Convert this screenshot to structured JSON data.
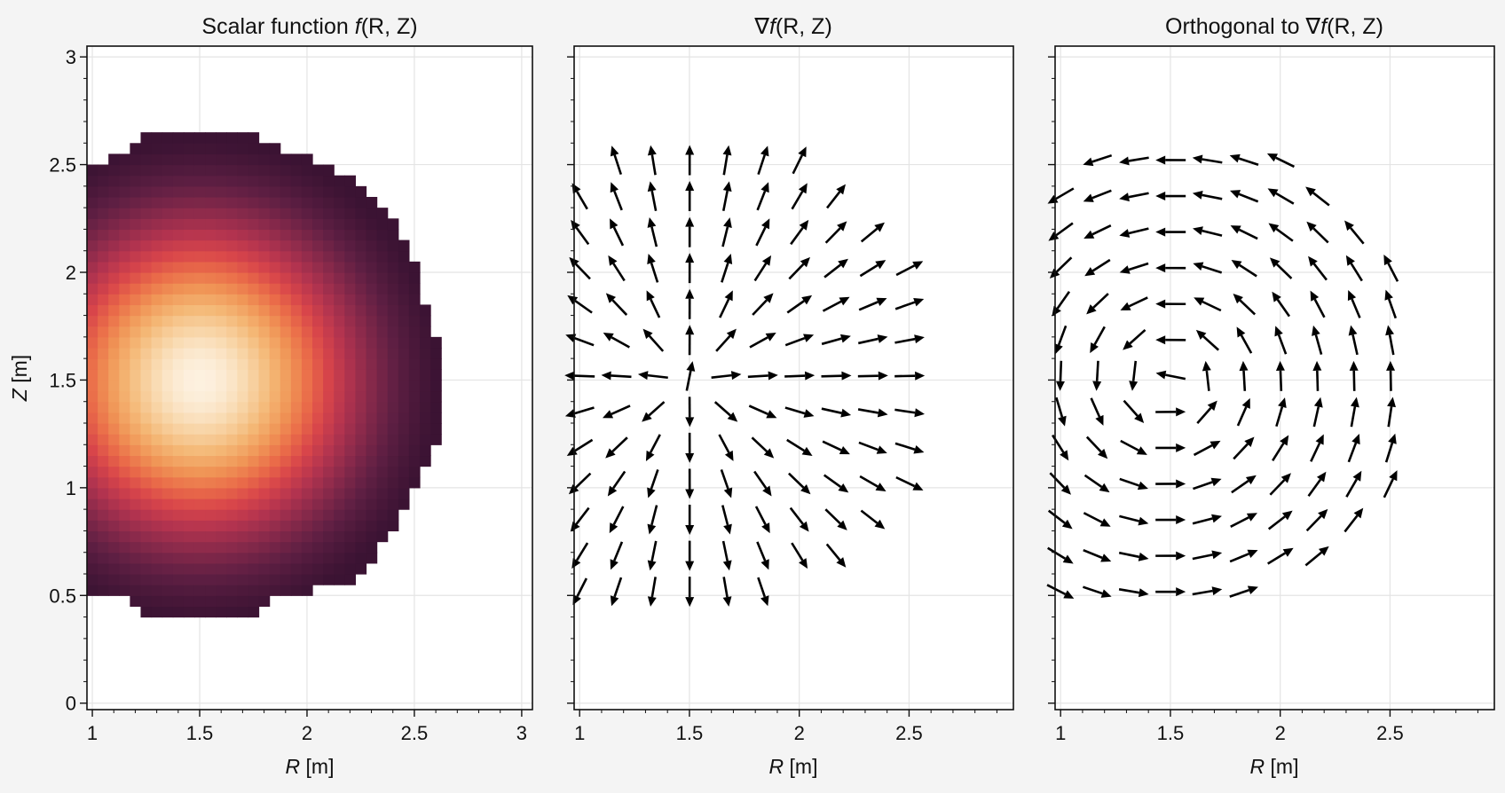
{
  "chart_data": [
    {
      "type": "heatmap",
      "title": "Scalar function f(R, Z)",
      "title_parts": {
        "prefix": "Scalar function ",
        "f": "f",
        "args": "(R, Z)"
      },
      "xlabel": {
        "var": "R",
        "unit": " [m]"
      },
      "ylabel": {
        "var": "Z",
        "unit": " [m]"
      },
      "xlim": [
        0.975,
        3.05
      ],
      "ylim": [
        -0.03,
        3.05
      ],
      "xticks": [
        1,
        1.5,
        2,
        2.5,
        3
      ],
      "xtick_labels": [
        "1",
        "1.5",
        "2",
        "2.5",
        "3"
      ],
      "yticks": [
        0,
        0.5,
        1,
        1.5,
        2,
        2.5,
        3
      ],
      "ytick_labels": [
        "0",
        "0.5",
        "1",
        "1.5",
        "2",
        "2.5",
        "3"
      ],
      "grid": true,
      "colormap": "rocket",
      "colormap_stops": [
        "#3b1333",
        "#5e1f43",
        "#8a2a4b",
        "#b4344f",
        "#d8454a",
        "#ea6c49",
        "#f09556",
        "#f4b775",
        "#f8d5a7",
        "#fdf1e0"
      ],
      "function": {
        "form": "exp(-((R-R0)^2+(Z-Z0)^2)/s2)",
        "R0": 1.5,
        "Z0": 1.5,
        "s2": 0.5
      },
      "grid_spacing": 0.05,
      "masked_outside_boundary": true
    },
    {
      "type": "quiver",
      "title": "∇f(R, Z)",
      "title_parts": {
        "prefix": "∇",
        "f": "f",
        "args": "(R, Z)"
      },
      "xlabel": {
        "var": "R",
        "unit": " [m]"
      },
      "xlim": [
        0.975,
        2.975
      ],
      "ylim": [
        -0.03,
        3.05
      ],
      "xticks": [
        1,
        1.5,
        2,
        2.5
      ],
      "xtick_labels": [
        "1",
        "1.5",
        "2",
        "2.5"
      ],
      "yticks": [
        0,
        0.5,
        1,
        1.5,
        2,
        2.5,
        3
      ],
      "grid": true,
      "arrow_color": "#000000",
      "field": "gradient",
      "arrow_grid_spacing": 0.167,
      "masked_outside_boundary": true
    },
    {
      "type": "quiver",
      "title": "Orthogonal to ∇f(R, Z)",
      "title_parts": {
        "prefix": "Orthogonal to ∇",
        "f": "f",
        "args": "(R, Z)"
      },
      "xlabel": {
        "var": "R",
        "unit": " [m]"
      },
      "xlim": [
        0.975,
        2.975
      ],
      "ylim": [
        -0.03,
        3.05
      ],
      "xticks": [
        1,
        1.5,
        2,
        2.5
      ],
      "xtick_labels": [
        "1",
        "1.5",
        "2",
        "2.5"
      ],
      "yticks": [
        0,
        0.5,
        1,
        1.5,
        2,
        2.5,
        3
      ],
      "grid": true,
      "arrow_color": "#000000",
      "field": "rotated gradient",
      "arrow_grid_spacing": 0.167,
      "masked_outside_boundary": true
    }
  ],
  "domain_boundary": {
    "description": "plasma-like D-shaped region",
    "Z_center": 1.5,
    "R_left": 0.975,
    "rows": [
      {
        "Z": 2.6,
        "Rmax": 1.78,
        "Rmin": 1.24
      },
      {
        "Z": 2.55,
        "Rmax": 1.92,
        "Rmin": 1.08
      },
      {
        "Z": 2.5,
        "Rmax": 2.08
      },
      {
        "Z": 2.45,
        "Rmax": 2.16
      },
      {
        "Z": 2.4,
        "Rmax": 2.24
      },
      {
        "Z": 2.3,
        "Rmax": 2.34
      },
      {
        "Z": 2.2,
        "Rmax": 2.42
      },
      {
        "Z": 2.1,
        "Rmax": 2.48
      },
      {
        "Z": 2.0,
        "Rmax": 2.53
      },
      {
        "Z": 1.8,
        "Rmax": 2.56
      },
      {
        "Z": 1.7,
        "Rmax": 2.61
      },
      {
        "Z": 1.5,
        "Rmax": 2.61
      },
      {
        "Z": 1.2,
        "Rmax": 2.61
      },
      {
        "Z": 1.05,
        "Rmax": 2.53
      },
      {
        "Z": 0.95,
        "Rmax": 2.48
      },
      {
        "Z": 0.8,
        "Rmax": 2.4
      },
      {
        "Z": 0.7,
        "Rmax": 2.32
      },
      {
        "Z": 0.6,
        "Rmax": 2.24
      },
      {
        "Z": 0.55,
        "Rmax": 2.16
      },
      {
        "Z": 0.5,
        "Rmax": 1.92,
        "Rmin": 1.08
      },
      {
        "Z": 0.45,
        "Rmax": 1.78,
        "Rmin": 1.24
      }
    ]
  }
}
